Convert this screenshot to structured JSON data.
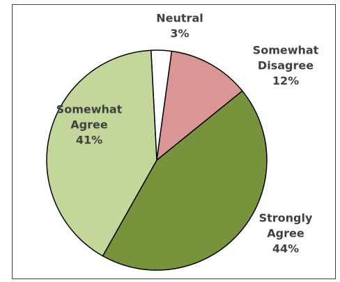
{
  "chart_data": {
    "type": "pie",
    "title": "",
    "slices": [
      {
        "label_lines": [
          "Neutral"
        ],
        "value": 3,
        "value_label": "3%",
        "color": "#ffffff"
      },
      {
        "label_lines": [
          "Somewhat",
          "Disagree"
        ],
        "value": 12,
        "value_label": "12%",
        "color": "#da9694"
      },
      {
        "label_lines": [
          "Strongly",
          "Agree"
        ],
        "value": 44,
        "value_label": "44%",
        "color": "#77933c"
      },
      {
        "label_lines": [
          "Somewhat",
          "Agree"
        ],
        "value": 41,
        "value_label": "41%",
        "color": "#c4d79b"
      }
    ],
    "slice_border_color": "#000000",
    "label_color": "#404040",
    "legend": "none"
  }
}
